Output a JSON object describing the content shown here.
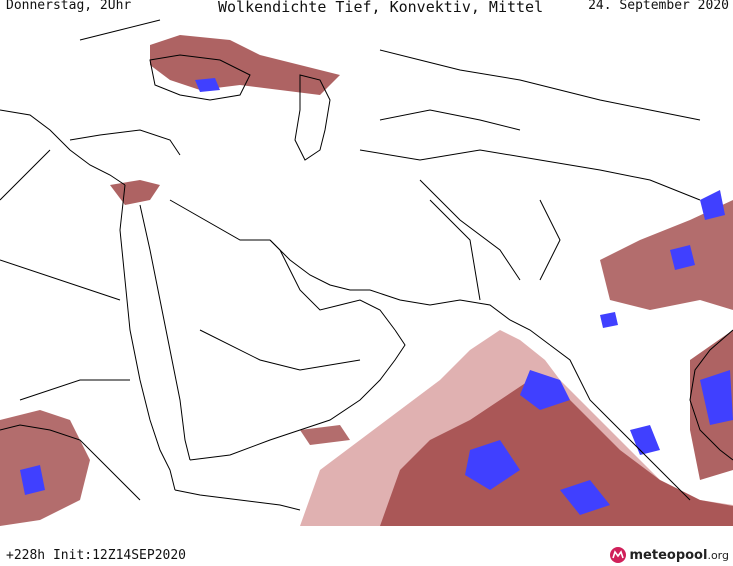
{
  "header": {
    "left": "Donnerstag, 2Uhr",
    "title": "Wolkendichte  Tief, Konvektiv, Mittel",
    "right": "24. September 2020"
  },
  "footer": {
    "run": "+228h Init:12Z14SEP2020",
    "brand": "meteopool",
    "brand_suffix": ".org"
  },
  "colors": {
    "cloud_low": "#dba3a3",
    "cloud_mid": "#a04848",
    "cloud_high": "#7a2020",
    "convective": "#4040ff",
    "borders": "#000000"
  },
  "icons": {
    "logo": "meteopool-logo-icon"
  }
}
